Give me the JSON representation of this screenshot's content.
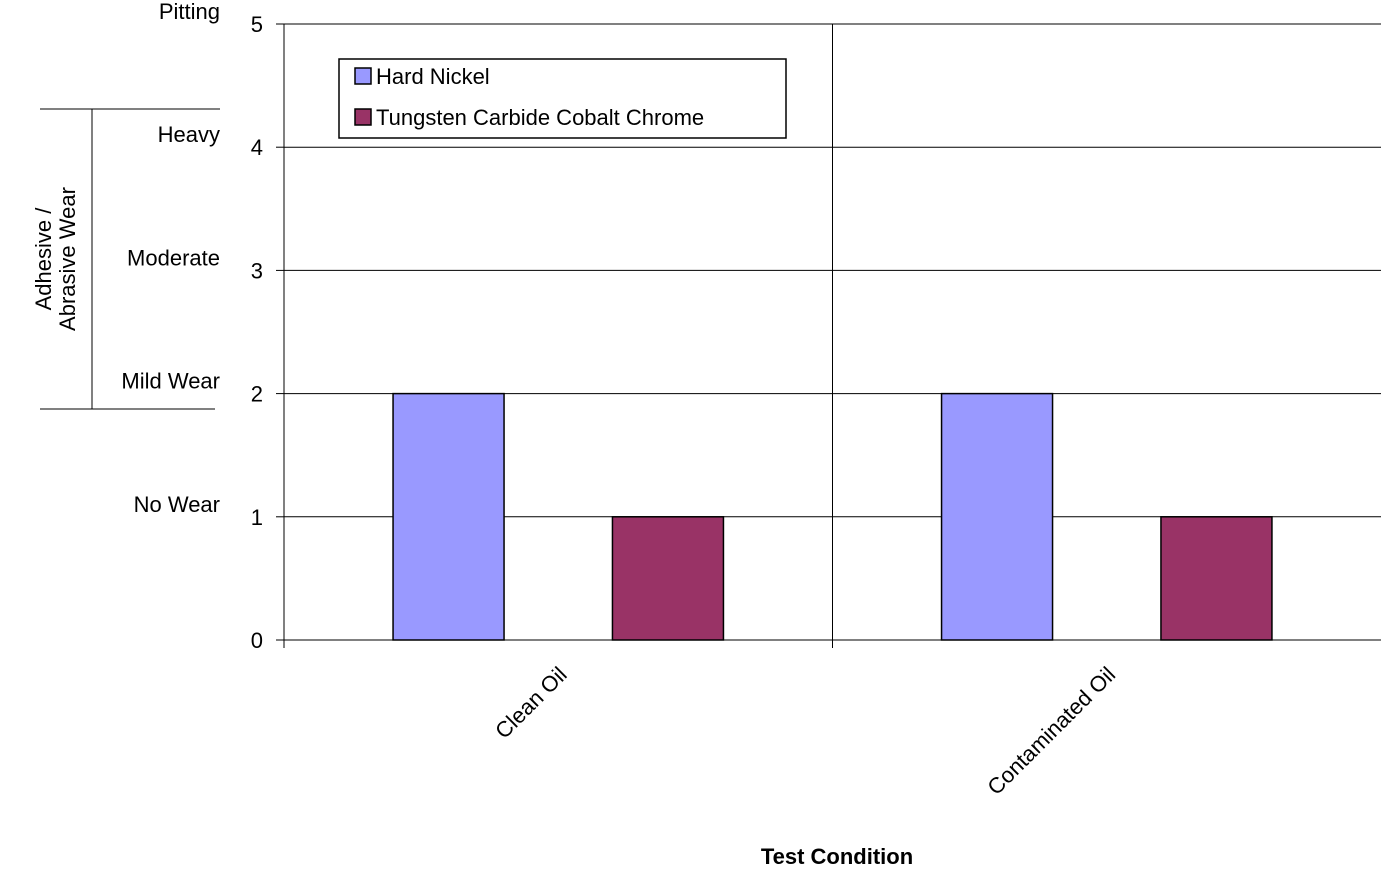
{
  "chart_data": {
    "type": "bar",
    "categories": [
      "Clean Oil",
      "Contaminated Oil"
    ],
    "series": [
      {
        "name": "Hard Nickel",
        "values": [
          2,
          2
        ],
        "color": "#9999FF"
      },
      {
        "name": "Tungsten Carbide Cobalt Chrome",
        "values": [
          1,
          1
        ],
        "color": "#993366"
      }
    ],
    "xlabel": "Test Condition",
    "ylim": [
      0,
      5
    ],
    "yticks": [
      0,
      1,
      2,
      3,
      4,
      5
    ],
    "grid": true,
    "legend_position": "top-left",
    "wear_levels": [
      {
        "value": 1,
        "label": "No Wear"
      },
      {
        "value": 2,
        "label": "Mild Wear"
      },
      {
        "value": 3,
        "label": "Moderate"
      },
      {
        "value": 4,
        "label": "Heavy"
      },
      {
        "value": 5,
        "label": "Pitting"
      }
    ],
    "wear_group_label": [
      "Adhesive /",
      "Abrasive Wear"
    ]
  }
}
